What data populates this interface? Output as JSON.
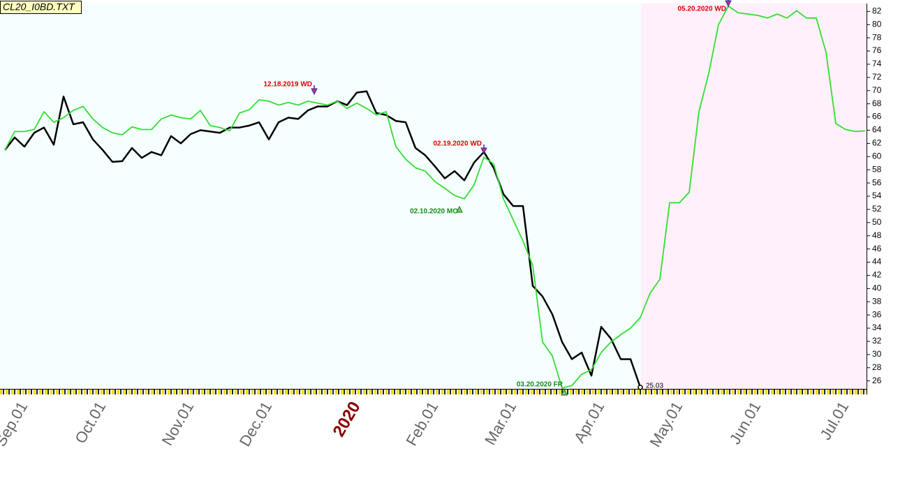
{
  "chart_data": {
    "type": "line",
    "title": "CL20_I0BD.TXT",
    "categories": [
      null,
      null,
      "Sep.01",
      null,
      null,
      null,
      null,
      null,
      null,
      null,
      "Oct.01",
      null,
      null,
      null,
      null,
      null,
      null,
      null,
      null,
      "Nov.01",
      null,
      null,
      null,
      null,
      null,
      null,
      null,
      "Dec.01",
      null,
      null,
      null,
      null,
      null,
      null,
      null,
      null,
      "2020",
      null,
      null,
      null,
      null,
      null,
      null,
      null,
      "Feb.01",
      null,
      null,
      null,
      null,
      null,
      null,
      null,
      "Mar.01",
      null,
      null,
      null,
      null,
      null,
      null,
      null,
      null,
      "Apr.01",
      null,
      null,
      null,
      null,
      null,
      null,
      null,
      "May.01",
      null,
      null,
      null,
      null,
      null,
      null,
      null,
      "Jun.01",
      null,
      null,
      null,
      null,
      null,
      null,
      null,
      null,
      "Jul.01",
      null,
      null
    ],
    "series": [
      {
        "color": "#000000",
        "values": [
          61.0,
          62.9,
          61.5,
          63.6,
          64.4,
          61.8,
          69.1,
          64.9,
          65.2,
          62.6,
          61.0,
          59.2,
          59.3,
          61.3,
          59.8,
          60.7,
          60.2,
          63.1,
          62.0,
          63.4,
          64.0,
          63.8,
          63.6,
          64.4,
          64.4,
          64.7,
          65.2,
          62.6,
          65.2,
          65.9,
          65.7,
          67.0,
          67.6,
          67.6,
          68.4,
          67.8,
          69.7,
          69.9,
          66.6,
          66.3,
          65.4,
          65.2,
          61.3,
          60.2,
          58.5,
          56.7,
          57.8,
          56.4,
          59.1,
          60.7,
          58.3,
          54.3,
          52.5,
          52.5,
          40.4,
          38.8,
          36.1,
          31.9,
          29.3,
          30.3,
          26.8,
          34.2,
          32.4,
          29.3,
          29.3,
          25.03,
          null,
          null,
          null,
          null,
          null,
          null,
          null,
          null,
          null,
          null,
          null,
          null,
          null,
          null,
          null,
          null,
          null,
          null,
          null,
          null,
          null,
          null,
          null
        ]
      },
      {
        "color": "#33dd33",
        "values": [
          61.0,
          63.8,
          63.8,
          64.1,
          66.8,
          65.2,
          65.9,
          67.0,
          67.6,
          65.7,
          64.4,
          63.6,
          63.3,
          64.5,
          64.1,
          64.1,
          65.7,
          66.3,
          65.9,
          65.7,
          67.0,
          64.7,
          64.4,
          63.9,
          66.6,
          67.1,
          68.6,
          68.4,
          67.8,
          68.2,
          67.8,
          68.4,
          68.1,
          67.8,
          68.4,
          67.3,
          68.1,
          67.3,
          66.3,
          66.8,
          61.5,
          59.6,
          58.3,
          57.8,
          56.2,
          55.2,
          54.1,
          53.6,
          55.7,
          59.9,
          58.9,
          53.6,
          50.4,
          47.2,
          43.5,
          31.9,
          29.8,
          24.9,
          25.3,
          27.0,
          27.7,
          30.3,
          31.9,
          33.0,
          34.0,
          35.6,
          39.3,
          41.4,
          53.0,
          53.0,
          54.6,
          66.8,
          72.6,
          80.0,
          82.8,
          81.8,
          81.6,
          81.4,
          81.0,
          81.6,
          81.0,
          82.1,
          81.0,
          81.0,
          75.8,
          65.0,
          64.1,
          63.8,
          63.9
        ]
      }
    ],
    "ylim": [
      24.8,
      83.2
    ],
    "yticks": [
      26,
      28,
      30,
      32,
      34,
      36,
      38,
      40,
      42,
      44,
      46,
      48,
      50,
      52,
      54,
      56,
      58,
      60,
      62,
      64,
      66,
      68,
      70,
      72,
      74,
      76,
      78,
      80,
      82
    ],
    "annotations": [
      "12.18.2019 WD",
      "02.10.2020 MO",
      "02.19.2020 WD",
      "03.20.2020 FR",
      "05.20.2020 WD"
    ]
  }
}
